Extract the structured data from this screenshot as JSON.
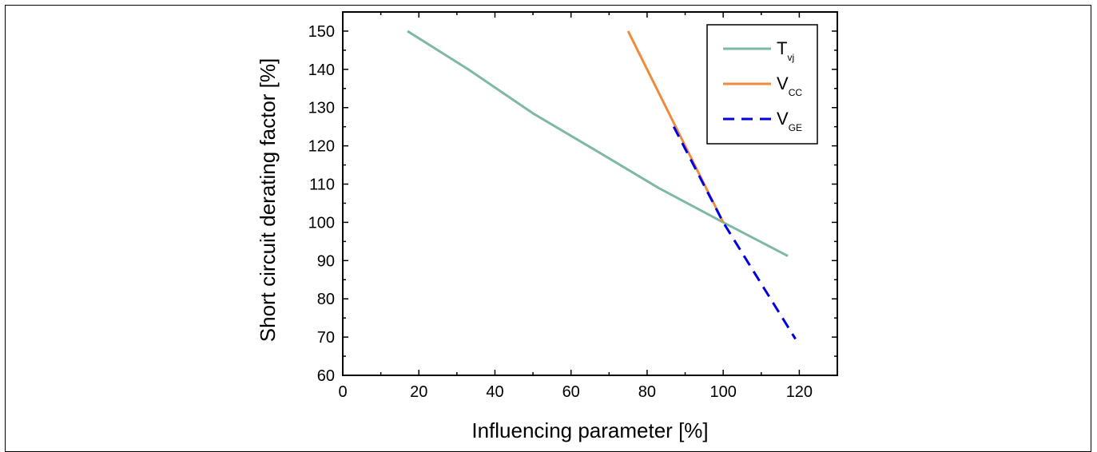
{
  "chart_data": {
    "type": "line",
    "xlabel": "Influencing parameter [%]",
    "ylabel": "Short circuit derating factor [%]",
    "xlim": [
      0,
      130
    ],
    "ylim": [
      60,
      155
    ],
    "x_ticks": [
      0,
      20,
      40,
      60,
      80,
      100,
      120
    ],
    "y_ticks": [
      60,
      70,
      80,
      90,
      100,
      110,
      120,
      130,
      140,
      150
    ],
    "grid": false,
    "legend_position": "top-right",
    "series": [
      {
        "name": "T",
        "name_sub": "vj",
        "color": "#7fb8a3",
        "dash": "solid",
        "x": [
          17,
          33,
          50,
          67,
          83,
          100,
          117
        ],
        "y": [
          150,
          140,
          128.5,
          118.5,
          109,
          100,
          91.2
        ]
      },
      {
        "name": "V",
        "name_sub": "CC",
        "color": "#f08a3c",
        "dash": "solid",
        "x": [
          75,
          100
        ],
        "y": [
          150,
          100
        ]
      },
      {
        "name": "V",
        "name_sub": "GE",
        "color": "#0000dd",
        "dash": "dashed",
        "x": [
          87,
          100,
          119
        ],
        "y": [
          125,
          100,
          69.5
        ]
      }
    ]
  }
}
